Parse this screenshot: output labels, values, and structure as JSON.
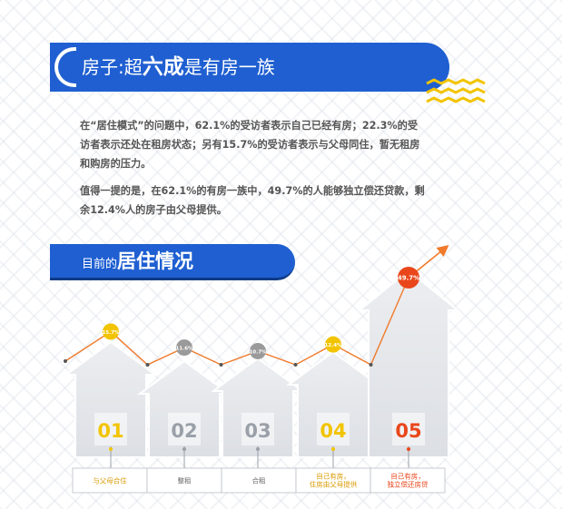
{
  "header": {
    "title_prefix": "房子:超",
    "title_strong": "六成",
    "title_suffix": "是有房一族"
  },
  "paragraphs": [
    "在“居住模式”的问题中，62.1%的受访者表示自己已经有房；22.3%的受访者表示还处在租房状态；另有15.7%的受访者表示与父母同住，暂无租房和购房的压力。",
    "值得一提的是，在62.1%的有房一族中，49.7%的人能够独立偿还贷款，剩余12.4%人的房子由父母提供。"
  ],
  "section": {
    "title_small": "目前的",
    "title_big": "居住情况"
  },
  "colors": {
    "brand_blue": "#1f5fd1",
    "accent_yellow": "#f2c400",
    "accent_red": "#e9471b",
    "trend_line": "#f07a2a",
    "house_gray": "#e4e6ea",
    "gray_text": "#9a9a9a"
  },
  "chart_data": {
    "type": "line",
    "categories": [
      "与父母合住",
      "整租",
      "合租",
      "自己有房，住房由父母提供",
      "自己有房，独立偿还房贷"
    ],
    "numbers": [
      "01",
      "02",
      "03",
      "04",
      "05"
    ],
    "label_lines": [
      [
        "与父母合住"
      ],
      [
        "整租"
      ],
      [
        "合租"
      ],
      [
        "自己有房，",
        "住房由父母提供"
      ],
      [
        "自己有房，",
        "独立偿还房贷"
      ]
    ],
    "values": [
      15.7,
      11.6,
      10.7,
      12.4,
      49.7
    ],
    "value_labels": [
      "15.7%",
      "11.6%",
      "10.7%",
      "12.4%",
      "49.7%"
    ],
    "unit": "%",
    "title": "",
    "xlabel": "",
    "ylabel": ""
  }
}
